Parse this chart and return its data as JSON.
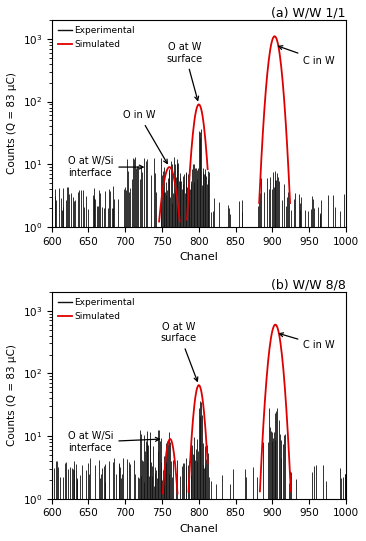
{
  "title_a": "(a) W/W 1/1",
  "title_b": "(b) W/W 8/8",
  "xlabel": "Chanel",
  "ylabel": "Counts (Q = 83 μC)",
  "xlim": [
    600,
    1000
  ],
  "ylim": [
    1,
    2000
  ],
  "legend_exp": "Experimental",
  "legend_sim": "Simulated",
  "color_exp": "#111111",
  "color_sim": "#dd0000",
  "figsize": [
    3.66,
    5.41
  ],
  "dpi": 100
}
